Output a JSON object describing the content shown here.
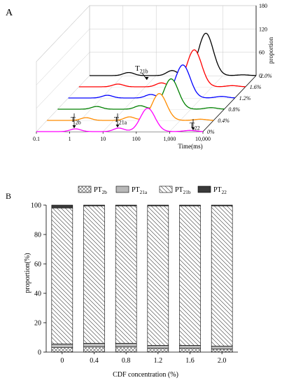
{
  "chart_data": [
    {
      "panel_label": "A",
      "type": "line",
      "subtype": "3d-waterfall",
      "xlabel": "Time(ms)",
      "xscale": "log",
      "xlim": [
        0.1,
        10000
      ],
      "xticks": [
        "0.1",
        "1",
        "10",
        "100",
        "1,000",
        "10,000"
      ],
      "zlabel": "proportion",
      "zticks": [
        "0",
        "60",
        "120",
        "180"
      ],
      "zlim": [
        0,
        180
      ],
      "depth_ticks": [
        "0%",
        "0.4%",
        "0.8%",
        "1.2%",
        "1.6%",
        "2.0%"
      ],
      "annotations": [
        {
          "id": "T2b",
          "base": "T",
          "sub": "2b"
        },
        {
          "id": "T21a",
          "base": "T",
          "sub": "21a"
        },
        {
          "id": "T21b",
          "base": "T",
          "sub": "21b"
        },
        {
          "id": "T22",
          "base": "T",
          "sub": "22"
        }
      ],
      "series": [
        {
          "name": "0%",
          "color": "#ff00ff",
          "peaks": [
            {
              "t": 1.5,
              "h": 7
            },
            {
              "t": 30,
              "h": 9
            },
            {
              "t": 220,
              "h": 60
            },
            {
              "t": 4000,
              "h": 3
            }
          ]
        },
        {
          "name": "0.4%",
          "color": "#ff8c00",
          "peaks": [
            {
              "t": 1.5,
              "h": 7
            },
            {
              "t": 30,
              "h": 9
            },
            {
              "t": 235,
              "h": 69
            },
            {
              "t": 4000,
              "h": 3
            }
          ]
        },
        {
          "name": "0.8%",
          "color": "#008000",
          "peaks": [
            {
              "t": 1.5,
              "h": 7
            },
            {
              "t": 30,
              "h": 9
            },
            {
              "t": 255,
              "h": 78
            },
            {
              "t": 4000,
              "h": 4
            }
          ]
        },
        {
          "name": "1.2%",
          "color": "#0000ff",
          "peaks": [
            {
              "t": 1.5,
              "h": 7
            },
            {
              "t": 30,
              "h": 9
            },
            {
              "t": 275,
              "h": 85
            },
            {
              "t": 4000,
              "h": 4
            }
          ]
        },
        {
          "name": "1.6%",
          "color": "#ff0000",
          "peaks": [
            {
              "t": 1.5,
              "h": 7
            },
            {
              "t": 30,
              "h": 10
            },
            {
              "t": 290,
              "h": 95
            },
            {
              "t": 4000,
              "h": 3
            }
          ]
        },
        {
          "name": "2.0%",
          "color": "#000000",
          "peaks": [
            {
              "t": 1.5,
              "h": 8
            },
            {
              "t": 30,
              "h": 13
            },
            {
              "t": 310,
              "h": 109
            },
            {
              "t": 4000,
              "h": 2
            }
          ]
        }
      ]
    },
    {
      "panel_label": "B",
      "type": "bar",
      "stacked": true,
      "xlabel": "CDF concentration (%)",
      "ylabel": "proportion(%)",
      "ylim": [
        0,
        100
      ],
      "yticks": [
        "0",
        "20",
        "40",
        "60",
        "80",
        "100"
      ],
      "categories": [
        "0",
        "0.4",
        "0.8",
        "1.2",
        "1.6",
        "2.0"
      ],
      "legend_position": "top",
      "series": [
        {
          "name": "PT2b",
          "base": "PT",
          "sub": "2b",
          "pattern": "crosshatch",
          "values": [
            3.0,
            3.5,
            3.5,
            2.5,
            2.5,
            2.0
          ]
        },
        {
          "name": "PT21a",
          "base": "PT",
          "sub": "21a",
          "pattern": "gray",
          "values": [
            2.5,
            2.5,
            2.5,
            2.0,
            2.0,
            2.0
          ]
        },
        {
          "name": "PT21b",
          "base": "PT",
          "sub": "21b",
          "pattern": "diagonal",
          "values": [
            92.5,
            93.5,
            93.5,
            95.0,
            95.0,
            95.5
          ]
        },
        {
          "name": "PT22",
          "base": "PT",
          "sub": "22",
          "pattern": "black",
          "values": [
            2.0,
            0.5,
            0.5,
            0.5,
            0.5,
            0.5
          ]
        }
      ]
    }
  ]
}
